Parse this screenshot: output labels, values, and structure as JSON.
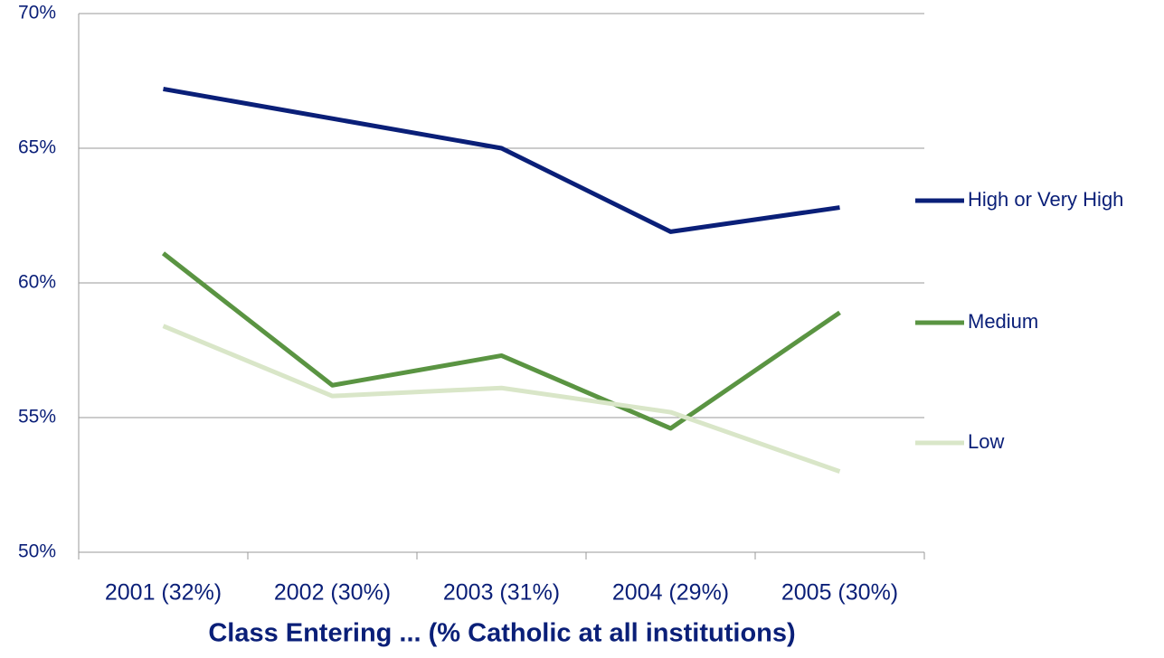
{
  "chart_data": {
    "type": "line",
    "x_label": "Class Entering ... (% Catholic at all institutions)",
    "categories": [
      "2001 (32%)",
      "2002 (30%)",
      "2003 (31%)",
      "2004 (29%)",
      "2005 (30%)"
    ],
    "series": [
      {
        "name": "High or Very High",
        "color": "#0a1f78",
        "values": [
          67.2,
          66.1,
          65.0,
          61.9,
          62.8
        ]
      },
      {
        "name": "Medium",
        "color": "#5a9442",
        "values": [
          61.1,
          56.2,
          57.3,
          54.6,
          58.9
        ]
      },
      {
        "name": "Low",
        "color": "#d9e6c8",
        "values": [
          58.4,
          55.8,
          56.1,
          55.2,
          53.0
        ]
      }
    ],
    "ylim": [
      50,
      70
    ],
    "yticks": [
      {
        "value": 50,
        "label": "50%"
      },
      {
        "value": 55,
        "label": "55%"
      },
      {
        "value": 60,
        "label": "60%"
      },
      {
        "value": 65,
        "label": "65%"
      },
      {
        "value": 70,
        "label": "70%"
      }
    ],
    "grid": true,
    "legend": "right"
  }
}
